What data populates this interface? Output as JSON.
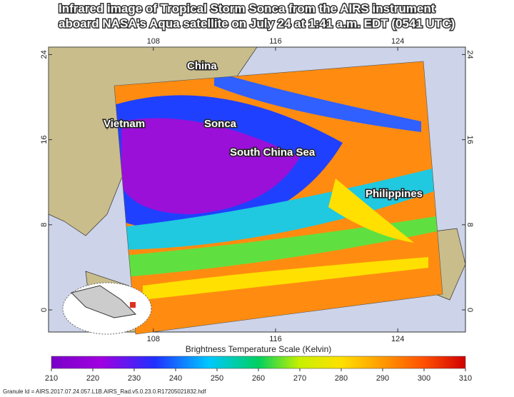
{
  "header": {
    "title_lines": [
      "Infrared image of Tropical Storm Sonca from the AIRS instrument",
      "aboard NASA's Aqua satellite on July 24 at 1:41 a.m. EDT (0541 UTC)"
    ]
  },
  "map": {
    "longitude_ticks": [
      108,
      116,
      124
    ],
    "latitude_ticks": [
      24,
      16,
      8,
      0
    ],
    "labels": [
      "China",
      "Vietnam",
      "Sonca",
      "South China Sea",
      "Philippines"
    ]
  },
  "colorbar": {
    "title": "Brightness Temperature Scale (Kelvin)",
    "range": [
      210,
      310
    ],
    "ticks": [
      210,
      220,
      230,
      240,
      250,
      260,
      270,
      280,
      290,
      300,
      310
    ]
  },
  "footer": {
    "granule": "Granule Id = AIRS.2017.07.24.057.L1B.AIRS_Rad.v5.0.23.0.R17205021832.hdf"
  }
}
